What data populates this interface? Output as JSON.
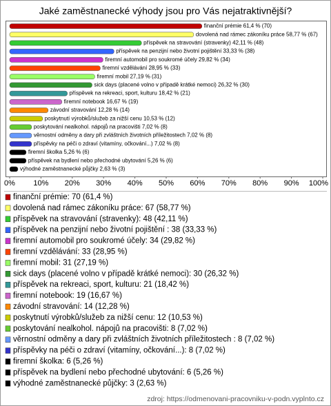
{
  "chart_data": {
    "type": "bar",
    "orientation": "horizontal",
    "title": "Jaké zaměstnanecké výhody jsou pro Vás nejatraktivnější?",
    "values": [
      61.4,
      58.77,
      42.11,
      33.33,
      29.82,
      28.95,
      27.19,
      26.32,
      18.42,
      16.67,
      12.28,
      10.53,
      7.02,
      7.02,
      7.02,
      5.26,
      5.26,
      2.63
    ],
    "value_labels": [
      "finanční prémie 61,4 % (70)",
      "dovolená nad rámec zákoníku práce 58,77 % (67)",
      "příspěvek na stravování (stravenky) 42,11 % (48)",
      "příspěvek na penzijní nebo životní pojištění  33,33 % (38)",
      "firemní automobil pro soukromé účely 29,82 % (34)",
      "firemní vzdělávání 28,95 % (33)",
      "firemní mobil 27,19 % (31)",
      "sick days (placené volno v případě krátké nemoci) 26,32 % (30)",
      "příspěvek na rekreaci, sport, kulturu 18,42 % (21)",
      "firemní notebook 16,67 % (19)",
      "závodní stravování 12,28 % (14)",
      "poskytnutí výrobků/služeb za nižší cenu 10,53 % (12)",
      "poskytování nealkohol. nápojů na pracovišti 7,02 % (8)",
      "věrnostní odměny a dary při zvláštních životních příležitostech  7,02 % (8)",
      "příspěvky na péči o zdraví (vitamíny, očkování...) 7,02 % (8)",
      "firemní školka 5,26 % (6)",
      "příspěvek na bydlení nebo přechodné ubytování 5,26 % (6)",
      "výhodné zaměstnanecké půjčky 2,63 % (3)"
    ],
    "legend": [
      "finanční prémie: 70 (61,4 %)",
      "dovolená nad rámec zákoníku práce: 67 (58,77 %)",
      "příspěvek na stravování (stravenky): 48 (42,11 %)",
      "příspěvek na penzijní nebo životní pojištění : 38 (33,33 %)",
      "firemní automobil pro soukromé účely: 34 (29,82 %)",
      "firemní vzdělávání: 33 (28,95 %)",
      "firemní mobil: 31 (27,19 %)",
      "sick days (placené volno v případě krátké nemoci): 30 (26,32 %)",
      "příspěvek na rekreaci, sport, kulturu: 21 (18,42 %)",
      "firemní notebook: 19 (16,67 %)",
      "závodní stravování: 14 (12,28 %)",
      "poskytnutí výrobků/služeb za nižší cenu: 12 (10,53 %)",
      "poskytování nealkohol. nápojů na pracovišti: 8 (7,02 %)",
      "věrnostní odměny a dary při zvláštních životních příležitostech : 8 (7,02 %)",
      "příspěvky na péči o zdraví (vitamíny, očkování...): 8 (7,02 %)",
      "firemní školka: 6 (5,26 %)",
      "příspěvek na bydlení nebo přechodné ubytování: 6 (5,26 %)",
      "výhodné zaměstnanecké půjčky: 3 (2,63 %)"
    ],
    "colors": [
      "#c00000",
      "#ffff66",
      "#33cc33",
      "#3366ff",
      "#cc33cc",
      "#ff4400",
      "#99ff66",
      "#339933",
      "#339999",
      "#cc66cc",
      "#ff8800",
      "#cccc00",
      "#66cc33",
      "#6699ff",
      "#3333cc",
      "#000000",
      "#000000",
      "#000000"
    ],
    "xlim": [
      0,
      100
    ],
    "xticks": [
      {
        "value": 0,
        "label": "0%"
      },
      {
        "value": 10,
        "label": "10%"
      },
      {
        "value": 20,
        "label": "20%"
      },
      {
        "value": 30,
        "label": "30%"
      },
      {
        "value": 40,
        "label": "40%"
      },
      {
        "value": 50,
        "label": "50%"
      },
      {
        "value": 60,
        "label": "60%"
      },
      {
        "value": 70,
        "label": "70%"
      },
      {
        "value": 80,
        "label": "80%"
      },
      {
        "value": 90,
        "label": "90%"
      },
      {
        "value": 100,
        "label": "100%"
      }
    ],
    "source": "zdroj: https://odmenovani-pracovniku-v-podn.vyplnto.cz"
  }
}
